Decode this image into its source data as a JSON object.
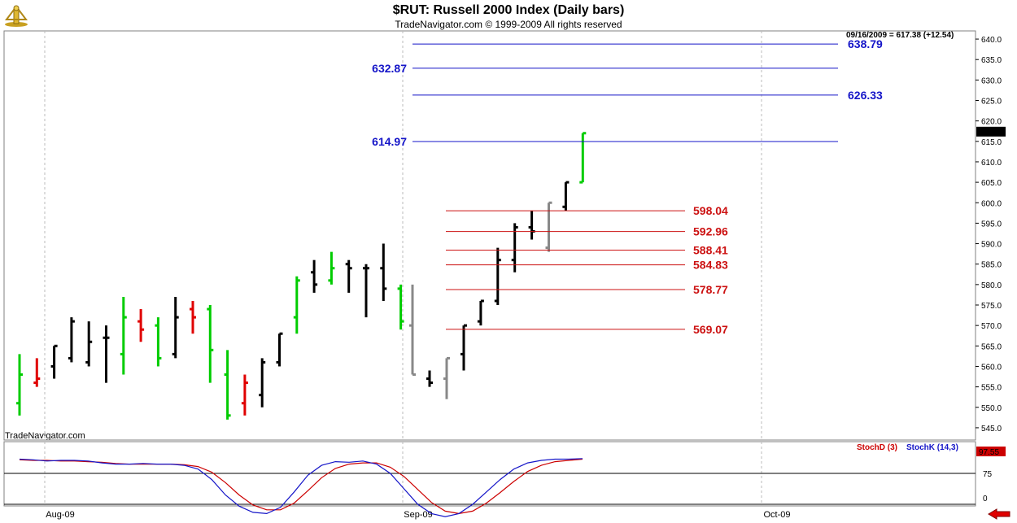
{
  "header": {
    "title": "$RUT:  Russell 2000 Index  (Daily bars)",
    "subtitle": "TradeNavigator.com © 1999-2009 All rights reserved",
    "watermark": "TradeNavigator.com",
    "stats": "09/16/2009 = 617.38 (+12.54)"
  },
  "colors": {
    "up_close_bar": "#00cc00",
    "down_close_bar": "#e00000",
    "bar": "#000000",
    "pre_bar": "#888888",
    "resistance": "#1515c8",
    "support": "#cc1111",
    "stoch_d": "#cc0000",
    "stoch_k": "#1515c8",
    "price_box": "#000000",
    "stoch_box": "#cc0000"
  },
  "chart_data": {
    "type": "ohlc",
    "price_axis": {
      "min": 542,
      "max": 642,
      "ticks": [
        545,
        550,
        555,
        560,
        565,
        570,
        575,
        580,
        585,
        590,
        595,
        600,
        605,
        610,
        615,
        620,
        625,
        630,
        635,
        640
      ]
    },
    "x_labels": [
      "Aug-09",
      "Sep-09",
      "Oct-09"
    ],
    "last_price": "617.38",
    "bars": [
      {
        "o": 551,
        "h": 563,
        "l": 548,
        "c": 558,
        "color": "green"
      },
      {
        "o": 556,
        "h": 562,
        "l": 555,
        "c": 557,
        "color": "red"
      },
      {
        "o": 560,
        "h": 565,
        "l": 557,
        "c": 565,
        "color": "black"
      },
      {
        "o": 562,
        "h": 572,
        "l": 561,
        "c": 571,
        "color": "black"
      },
      {
        "o": 561,
        "h": 571,
        "l": 560,
        "c": 566,
        "color": "black"
      },
      {
        "o": 567,
        "h": 570,
        "l": 556,
        "c": 567,
        "color": "black"
      },
      {
        "o": 563,
        "h": 577,
        "l": 558,
        "c": 572,
        "color": "green"
      },
      {
        "o": 571,
        "h": 574,
        "l": 566,
        "c": 569,
        "color": "red"
      },
      {
        "o": 570,
        "h": 572,
        "l": 560,
        "c": 562,
        "color": "green"
      },
      {
        "o": 563,
        "h": 577,
        "l": 562,
        "c": 572,
        "color": "black"
      },
      {
        "o": 574,
        "h": 576,
        "l": 568,
        "c": 572,
        "color": "red"
      },
      {
        "o": 574,
        "h": 575,
        "l": 556,
        "c": 564,
        "color": "green"
      },
      {
        "o": 558,
        "h": 564,
        "l": 547,
        "c": 548,
        "color": "green"
      },
      {
        "o": 551,
        "h": 558,
        "l": 548,
        "c": 556,
        "color": "red"
      },
      {
        "o": 553,
        "h": 562,
        "l": 550,
        "c": 561,
        "color": "black"
      },
      {
        "o": 561,
        "h": 568,
        "l": 560,
        "c": 568,
        "color": "black"
      },
      {
        "o": 572,
        "h": 582,
        "l": 568,
        "c": 581,
        "color": "green"
      },
      {
        "o": 583,
        "h": 586,
        "l": 578,
        "c": 580,
        "color": "black"
      },
      {
        "o": 581,
        "h": 588,
        "l": 580,
        "c": 584,
        "color": "green"
      },
      {
        "o": 585,
        "h": 586,
        "l": 578,
        "c": 584,
        "color": "black"
      },
      {
        "o": 584,
        "h": 585,
        "l": 572,
        "c": 584,
        "color": "black"
      },
      {
        "o": 584,
        "h": 590,
        "l": 576,
        "c": 579,
        "color": "black"
      },
      {
        "o": 579,
        "h": 580,
        "l": 569,
        "c": 571,
        "color": "green"
      }
    ],
    "pre_bars": [
      {
        "o": 570,
        "h": 580,
        "l": 558,
        "c": 558,
        "color": "gray"
      },
      {
        "o": 557,
        "h": 559,
        "l": 555,
        "c": 556,
        "color": "black"
      },
      {
        "o": 557,
        "h": 562,
        "l": 552,
        "c": 562,
        "color": "gray"
      }
    ],
    "extension_bars": [
      {
        "o": 563,
        "h": 570,
        "l": 559,
        "c": 570,
        "color": "black"
      },
      {
        "o": 571,
        "h": 576,
        "l": 570,
        "c": 576,
        "color": "black"
      },
      {
        "o": 576,
        "h": 589,
        "l": 575,
        "c": 586,
        "color": "black"
      },
      {
        "o": 586,
        "h": 595,
        "l": 583,
        "c": 594,
        "color": "black"
      },
      {
        "o": 594,
        "h": 598,
        "l": 591,
        "c": 593,
        "color": "black"
      },
      {
        "o": 589,
        "h": 600,
        "l": 588,
        "c": 600,
        "color": "gray"
      },
      {
        "o": 599,
        "h": 605,
        "l": 598,
        "c": 605,
        "color": "black"
      },
      {
        "o": 605,
        "h": 617,
        "l": 605,
        "c": 617,
        "color": "green"
      }
    ],
    "resistance_levels": [
      {
        "value": 638.79,
        "label": "638.79",
        "side": "right"
      },
      {
        "value": 632.87,
        "label": "632.87",
        "side": "left"
      },
      {
        "value": 626.33,
        "label": "626.33",
        "side": "right"
      },
      {
        "value": 614.97,
        "label": "614.97",
        "side": "left"
      }
    ],
    "support_levels": [
      {
        "value": 598.04,
        "label": "598.04"
      },
      {
        "value": 592.96,
        "label": "592.96"
      },
      {
        "value": 588.41,
        "label": "588.41"
      },
      {
        "value": 584.83,
        "label": "584.83"
      },
      {
        "value": 578.77,
        "label": "578.77"
      },
      {
        "value": 569.07,
        "label": "569.07"
      }
    ],
    "stochastic": {
      "d_label": "StochD (3)",
      "k_label": "StochK (14,3)",
      "last_value": "97.55",
      "ticks": [
        "75",
        "0"
      ],
      "levels": [
        75,
        25
      ],
      "k": [
        98,
        97,
        95,
        96,
        96,
        95,
        92,
        90,
        90,
        91,
        90,
        90,
        88,
        82,
        65,
        40,
        22,
        12,
        10,
        20,
        45,
        72,
        88,
        94,
        93,
        95,
        90,
        75,
        50,
        25,
        10,
        5,
        10,
        25,
        45,
        65,
        82,
        92,
        96,
        98,
        98,
        99
      ],
      "d": [
        97,
        96,
        96,
        95,
        95,
        94,
        93,
        91,
        90,
        90,
        90,
        90,
        89,
        86,
        77,
        60,
        40,
        24,
        16,
        16,
        27,
        47,
        68,
        83,
        90,
        92,
        92,
        85,
        70,
        49,
        28,
        14,
        10,
        14,
        27,
        44,
        62,
        78,
        88,
        94,
        96,
        98
      ]
    }
  }
}
